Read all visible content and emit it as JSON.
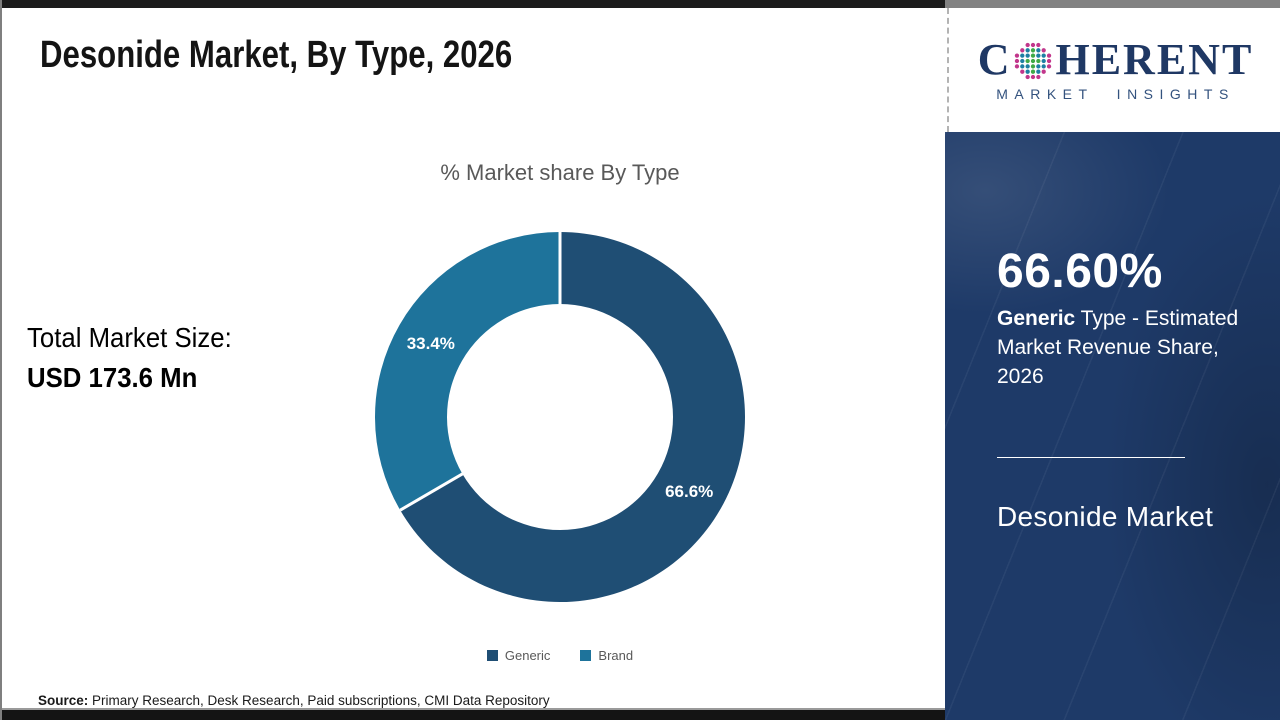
{
  "page": {
    "title": "Desonide Market, By Type, 2026"
  },
  "total_market": {
    "label": "Total Market Size:",
    "value": "USD 173.6 Mn"
  },
  "chart_data": {
    "type": "pie",
    "subtype": "donut",
    "title": "% Market share By Type",
    "categories": [
      "Generic",
      "Brand"
    ],
    "values": [
      66.6,
      33.4
    ],
    "data_labels": [
      "66.6%",
      "33.4%"
    ],
    "colors": [
      "#1f4e74",
      "#1e739b"
    ],
    "donut_hole_ratio": 0.61,
    "start_angle_deg": 0,
    "direction": "clockwise",
    "legend_position": "bottom",
    "legend_text_color": "#595959"
  },
  "sidebar": {
    "background_color": "#1e3a68",
    "stat_value": "66.60%",
    "stat_bold": "Generic",
    "stat_rest": " Type - Estimated Market Revenue Share, 2026",
    "footer_title": "Desonide Market"
  },
  "logo": {
    "part1": "C",
    "part2": "HERENT",
    "subtitle": "MARKET INSIGHTS",
    "navy": "#1f3864",
    "globe_colors": {
      "outer": "#c2368b",
      "mid": "#1d7fa3",
      "center": "#3faa47"
    }
  },
  "source": {
    "label": "Source:",
    "text": " Primary Research, Desk Research, Paid subscriptions, CMI Data Repository"
  }
}
